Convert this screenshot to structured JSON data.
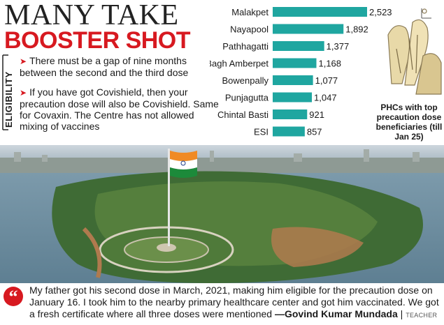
{
  "headline": {
    "line1": "MANY TAKE",
    "line2": "BOOSTER SHOT"
  },
  "eligibility": {
    "label": "ELIGIBILITY",
    "bullets": [
      "There must be a gap of nine months between the second and the third dose",
      "If you have got Covishield, then your precaution dose will also be Covishield. Same for Covaxin. The Centre has not allowed mixing of vaccines"
    ]
  },
  "chart_data": {
    "type": "bar",
    "orientation": "horizontal",
    "categories": [
      "Malakpet",
      "Nayapool",
      "Pathhagatti",
      "Bagh Amberpet",
      "Bowenpally",
      "Punjagutta",
      "Chintal Basti",
      "ESI"
    ],
    "values": [
      2523,
      1892,
      1377,
      1168,
      1077,
      1047,
      921,
      857
    ],
    "value_labels": [
      "2,523",
      "1,892",
      "1,377",
      "1,168",
      "1,077",
      "1,047",
      "921",
      "857"
    ],
    "xlim": [
      0,
      2523
    ],
    "bar_color": "#1fa6a0",
    "grid": false
  },
  "caption": "PHCs with top precaution dose beneficiaries (till Jan 25)",
  "quote": {
    "text": "My father got his second dose in March, 2021, making him eligible for the precaution dose on January 16. I took him to the nearby primary healthcare center and got him vaccinated. We got a fresh certificate where all three doses were mentioned",
    "author": "—Govind Kumar Mundada",
    "role": "TEACHER"
  },
  "colors": {
    "accent_red": "#d71920",
    "bar_teal": "#1fa6a0"
  }
}
